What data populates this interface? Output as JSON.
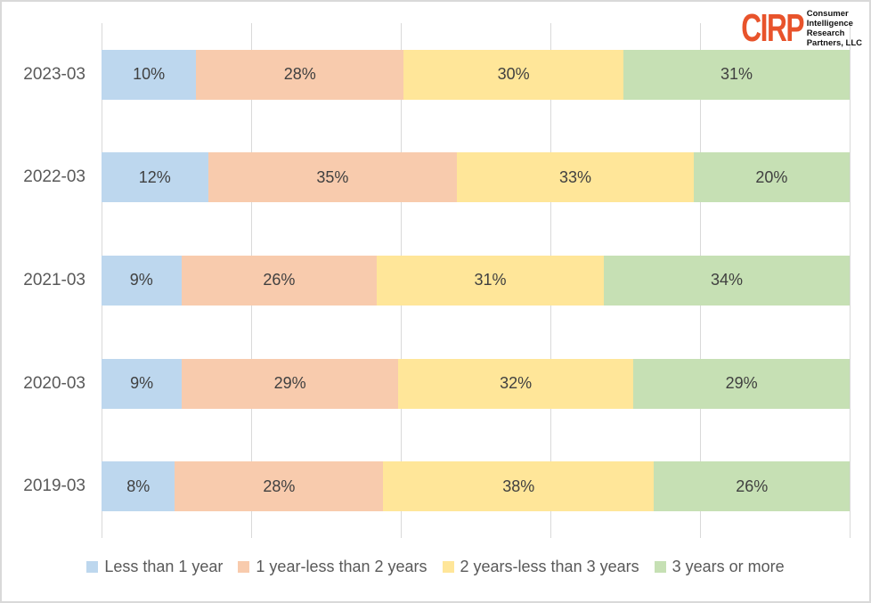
{
  "logo": {
    "brand": "CIRP",
    "brand_color": "#e8532b",
    "tagline": [
      "Consumer",
      "Intelligence",
      "Research",
      "Partners, LLC"
    ]
  },
  "chart_data": {
    "type": "bar",
    "orientation": "horizontal",
    "stacked": "100%",
    "title": "",
    "xlabel": "",
    "ylabel": "",
    "xlim": [
      0,
      100
    ],
    "gridline_step": 20,
    "grid": true,
    "legend_position": "bottom",
    "value_suffix": "%",
    "categories": [
      "2023-03",
      "2022-03",
      "2021-03",
      "2020-03",
      "2019-03"
    ],
    "series": [
      {
        "name": "Less than 1 year",
        "color": "#bdd7ee",
        "values": [
          10,
          12,
          9,
          9,
          8
        ]
      },
      {
        "name": "1 year-less than 2 years",
        "color": "#f8cbad",
        "values": [
          28,
          35,
          26,
          29,
          28
        ]
      },
      {
        "name": "2 years-less than 3 years",
        "color": "#ffe699",
        "values": [
          30,
          33,
          31,
          32,
          38
        ]
      },
      {
        "name": "3 years or more",
        "color": "#c6e0b4",
        "values": [
          31,
          20,
          34,
          29,
          26
        ]
      }
    ]
  },
  "colors": {
    "border": "#d9d9d9",
    "gridline": "#d9d9d9",
    "bar_label": "#404040",
    "axis_label": "#595959",
    "legend_label": "#595959"
  }
}
